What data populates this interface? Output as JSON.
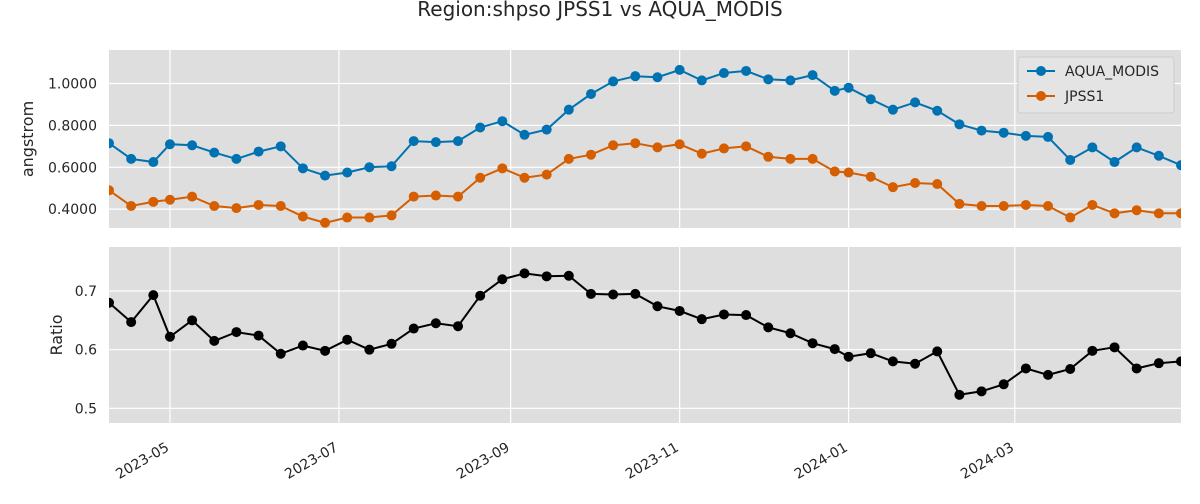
{
  "chart_data": [
    {
      "type": "line",
      "title": "Region:shpso JPSS1 vs AQUA_MODIS",
      "xlabel": "",
      "ylabel": "angstrom",
      "ylim": [
        0.31,
        1.16
      ],
      "yticks": [
        0.4,
        0.6,
        0.8,
        1.0
      ],
      "ytick_labels": [
        "0.4000",
        "0.6000",
        "0.8000",
        "1.0000"
      ],
      "xlim": [
        "2023-04-09",
        "2024-04-30"
      ],
      "xticks": [
        "2023-05-01",
        "2023-07-01",
        "2023-09-01",
        "2023-11-01",
        "2024-01-01",
        "2024-03-01"
      ],
      "xtick_labels": [
        "2023-05",
        "2023-07",
        "2023-09",
        "2023-11",
        "2024-01",
        "2024-03"
      ],
      "grid": true,
      "legend_position": "top-right",
      "x": [
        "2023-04-09",
        "2023-04-17",
        "2023-04-25",
        "2023-05-01",
        "2023-05-09",
        "2023-05-17",
        "2023-05-25",
        "2023-06-02",
        "2023-06-10",
        "2023-06-18",
        "2023-06-26",
        "2023-07-04",
        "2023-07-12",
        "2023-07-20",
        "2023-07-28",
        "2023-08-05",
        "2023-08-13",
        "2023-08-21",
        "2023-08-29",
        "2023-09-06",
        "2023-09-14",
        "2023-09-22",
        "2023-09-30",
        "2023-10-08",
        "2023-10-16",
        "2023-10-24",
        "2023-11-01",
        "2023-11-09",
        "2023-11-17",
        "2023-11-25",
        "2023-12-03",
        "2023-12-11",
        "2023-12-19",
        "2023-12-27",
        "2024-01-01",
        "2024-01-09",
        "2024-01-17",
        "2024-01-25",
        "2024-02-02",
        "2024-02-10",
        "2024-02-18",
        "2024-02-26",
        "2024-03-05",
        "2024-03-13",
        "2024-03-21",
        "2024-03-29",
        "2024-04-06",
        "2024-04-14",
        "2024-04-22",
        "2024-04-30"
      ],
      "series": [
        {
          "name": "AQUA_MODIS",
          "color": "#0072b2",
          "values": [
            0.715,
            0.64,
            0.625,
            0.71,
            0.705,
            0.67,
            0.64,
            0.675,
            0.7,
            0.595,
            0.56,
            0.575,
            0.6,
            0.605,
            0.725,
            0.72,
            0.725,
            0.79,
            0.82,
            0.755,
            0.78,
            0.875,
            0.95,
            1.01,
            1.035,
            1.03,
            1.065,
            1.015,
            1.05,
            1.06,
            1.02,
            1.015,
            1.04,
            0.965,
            0.98,
            0.925,
            0.875,
            0.91,
            0.87,
            0.805,
            0.775,
            0.765,
            0.75,
            0.745,
            0.635,
            0.695,
            0.625,
            0.695,
            0.655,
            0.61
          ]
        },
        {
          "name": "JPSS1",
          "color": "#d55e00",
          "values": [
            0.49,
            0.415,
            0.435,
            0.445,
            0.46,
            0.415,
            0.405,
            0.42,
            0.415,
            0.365,
            0.335,
            0.36,
            0.36,
            0.37,
            0.46,
            0.465,
            0.46,
            0.55,
            0.595,
            0.55,
            0.565,
            0.64,
            0.66,
            0.705,
            0.715,
            0.695,
            0.71,
            0.665,
            0.69,
            0.7,
            0.65,
            0.64,
            0.64,
            0.58,
            0.575,
            0.555,
            0.505,
            0.525,
            0.52,
            0.425,
            0.415,
            0.415,
            0.42,
            0.415,
            0.36,
            0.42,
            0.38,
            0.395,
            0.38,
            0.38
          ]
        }
      ]
    },
    {
      "type": "line",
      "title": "",
      "xlabel": "",
      "ylabel": "Ratio",
      "ylim": [
        0.475,
        0.775
      ],
      "yticks": [
        0.5,
        0.6,
        0.7
      ],
      "ytick_labels": [
        "0.5",
        "0.6",
        "0.7"
      ],
      "xlim": [
        "2023-04-09",
        "2024-04-30"
      ],
      "xticks": [
        "2023-05-01",
        "2023-07-01",
        "2023-09-01",
        "2023-11-01",
        "2024-01-01",
        "2024-03-01"
      ],
      "xtick_labels": [
        "2023-05",
        "2023-07",
        "2023-09",
        "2023-11",
        "2024-01",
        "2024-03"
      ],
      "grid": true,
      "x": [
        "2023-04-09",
        "2023-04-17",
        "2023-04-25",
        "2023-05-01",
        "2023-05-09",
        "2023-05-17",
        "2023-05-25",
        "2023-06-02",
        "2023-06-10",
        "2023-06-18",
        "2023-06-26",
        "2023-07-04",
        "2023-07-12",
        "2023-07-20",
        "2023-07-28",
        "2023-08-05",
        "2023-08-13",
        "2023-08-21",
        "2023-08-29",
        "2023-09-06",
        "2023-09-14",
        "2023-09-22",
        "2023-09-30",
        "2023-10-08",
        "2023-10-16",
        "2023-10-24",
        "2023-11-01",
        "2023-11-09",
        "2023-11-17",
        "2023-11-25",
        "2023-12-03",
        "2023-12-11",
        "2023-12-19",
        "2023-12-27",
        "2024-01-01",
        "2024-01-09",
        "2024-01-17",
        "2024-01-25",
        "2024-02-02",
        "2024-02-10",
        "2024-02-18",
        "2024-02-26",
        "2024-03-05",
        "2024-03-13",
        "2024-03-21",
        "2024-03-29",
        "2024-04-06",
        "2024-04-14",
        "2024-04-22",
        "2024-04-30"
      ],
      "series": [
        {
          "color": "#000000",
          "values": [
            0.68,
            0.647,
            0.693,
            0.622,
            0.65,
            0.615,
            0.63,
            0.624,
            0.593,
            0.607,
            0.598,
            0.617,
            0.6,
            0.61,
            0.636,
            0.645,
            0.64,
            0.692,
            0.72,
            0.73,
            0.725,
            0.726,
            0.695,
            0.694,
            0.695,
            0.674,
            0.666,
            0.652,
            0.66,
            0.659,
            0.638,
            0.628,
            0.611,
            0.601,
            0.588,
            0.594,
            0.58,
            0.576,
            0.597,
            0.523,
            0.529,
            0.541,
            0.568,
            0.557,
            0.567,
            0.598,
            0.604,
            0.568,
            0.577,
            0.58
          ]
        }
      ]
    }
  ]
}
